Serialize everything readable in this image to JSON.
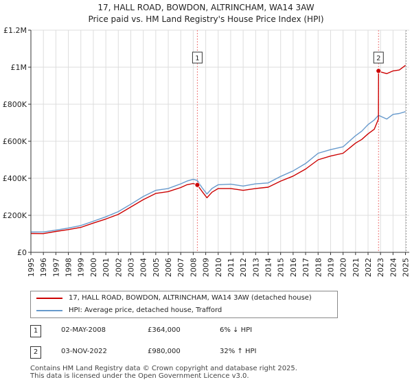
{
  "chart_data": {
    "type": "line",
    "title": "17, HALL ROAD, BOWDON, ALTRINCHAM, WA14 3AW",
    "subtitle": "Price paid vs. HM Land Registry's House Price Index (HPI)",
    "xlabel": "",
    "ylabel": "",
    "xlim": [
      1995,
      2025.3
    ],
    "ylim": [
      0,
      1200000
    ],
    "grid": true,
    "x_ticks": [
      1995,
      1996,
      1997,
      1998,
      1999,
      2000,
      2001,
      2002,
      2003,
      2004,
      2005,
      2006,
      2007,
      2008,
      2009,
      2010,
      2011,
      2012,
      2013,
      2014,
      2015,
      2016,
      2017,
      2018,
      2019,
      2020,
      2021,
      2022,
      2023,
      2024,
      2025
    ],
    "y_ticks": [
      {
        "value": 0,
        "label": "£0"
      },
      {
        "value": 200000,
        "label": "£200K"
      },
      {
        "value": 400000,
        "label": "£400K"
      },
      {
        "value": 600000,
        "label": "£600K"
      },
      {
        "value": 800000,
        "label": "£800K"
      },
      {
        "value": 1000000,
        "label": "£1M"
      },
      {
        "value": 1200000,
        "label": "£1.2M"
      }
    ],
    "series": [
      {
        "name": "17, HALL ROAD, BOWDON, ALTRINCHAM, WA14 3AW (detached house)",
        "color": "#cc0000",
        "x": [
          1995,
          1996,
          1997,
          1998,
          1999,
          2000,
          2001,
          2002,
          2003,
          2004,
          2005,
          2006,
          2007,
          2007.5,
          2008,
          2008.33,
          2008.7,
          2009.1,
          2009.5,
          2010,
          2011,
          2012,
          2013,
          2014,
          2015,
          2016,
          2017,
          2018,
          2019,
          2020,
          2021,
          2021.5,
          2022,
          2022.5,
          2022.83,
          2022.84,
          2023,
          2023.5,
          2024,
          2024.5,
          2025
        ],
        "values": [
          102000,
          101000,
          113000,
          123000,
          135000,
          158000,
          180000,
          205000,
          245000,
          285000,
          318000,
          328000,
          350000,
          365000,
          372000,
          364000,
          330000,
          295000,
          325000,
          345000,
          345000,
          335000,
          345000,
          352000,
          385000,
          412000,
          450000,
          500000,
          520000,
          535000,
          590000,
          610000,
          640000,
          665000,
          720000,
          980000,
          975000,
          965000,
          980000,
          985000,
          1010000
        ]
      },
      {
        "name": "HPI: Average price, detached house, Trafford",
        "color": "#6699cc",
        "x": [
          1995,
          1996,
          1997,
          1998,
          1999,
          2000,
          2001,
          2002,
          2003,
          2004,
          2005,
          2006,
          2007,
          2007.5,
          2008,
          2008.33,
          2008.7,
          2009.1,
          2009.5,
          2010,
          2011,
          2012,
          2013,
          2014,
          2015,
          2016,
          2017,
          2018,
          2019,
          2020,
          2021,
          2021.5,
          2022,
          2022.5,
          2022.83,
          2023,
          2023.5,
          2024,
          2024.5,
          2025
        ],
        "values": [
          110000,
          110000,
          120000,
          131000,
          145000,
          168000,
          192000,
          220000,
          260000,
          302000,
          335000,
          345000,
          370000,
          385000,
          395000,
          388000,
          350000,
          315000,
          345000,
          365000,
          368000,
          358000,
          370000,
          375000,
          410000,
          440000,
          480000,
          535000,
          555000,
          570000,
          630000,
          655000,
          690000,
          715000,
          740000,
          735000,
          720000,
          745000,
          750000,
          760000
        ]
      }
    ],
    "annotations": [
      {
        "label": "1",
        "x": 2008.33,
        "value": 364000
      },
      {
        "label": "2",
        "x": 2022.84,
        "value": 980000
      }
    ]
  },
  "legend": {
    "items": [
      {
        "label": "17, HALL ROAD, BOWDON, ALTRINCHAM, WA14 3AW (detached house)",
        "color": "#cc0000"
      },
      {
        "label": "HPI: Average price, detached house, Trafford",
        "color": "#6699cc"
      }
    ]
  },
  "transactions": [
    {
      "badge": "1",
      "date": "02-MAY-2008",
      "price": "£364,000",
      "hpi": "6% ↓ HPI"
    },
    {
      "badge": "2",
      "date": "03-NOV-2022",
      "price": "£980,000",
      "hpi": "32% ↑ HPI"
    }
  ],
  "footer": {
    "line1": "Contains HM Land Registry data © Crown copyright and database right 2025.",
    "line2": "This data is licensed under the Open Government Licence v3.0."
  }
}
